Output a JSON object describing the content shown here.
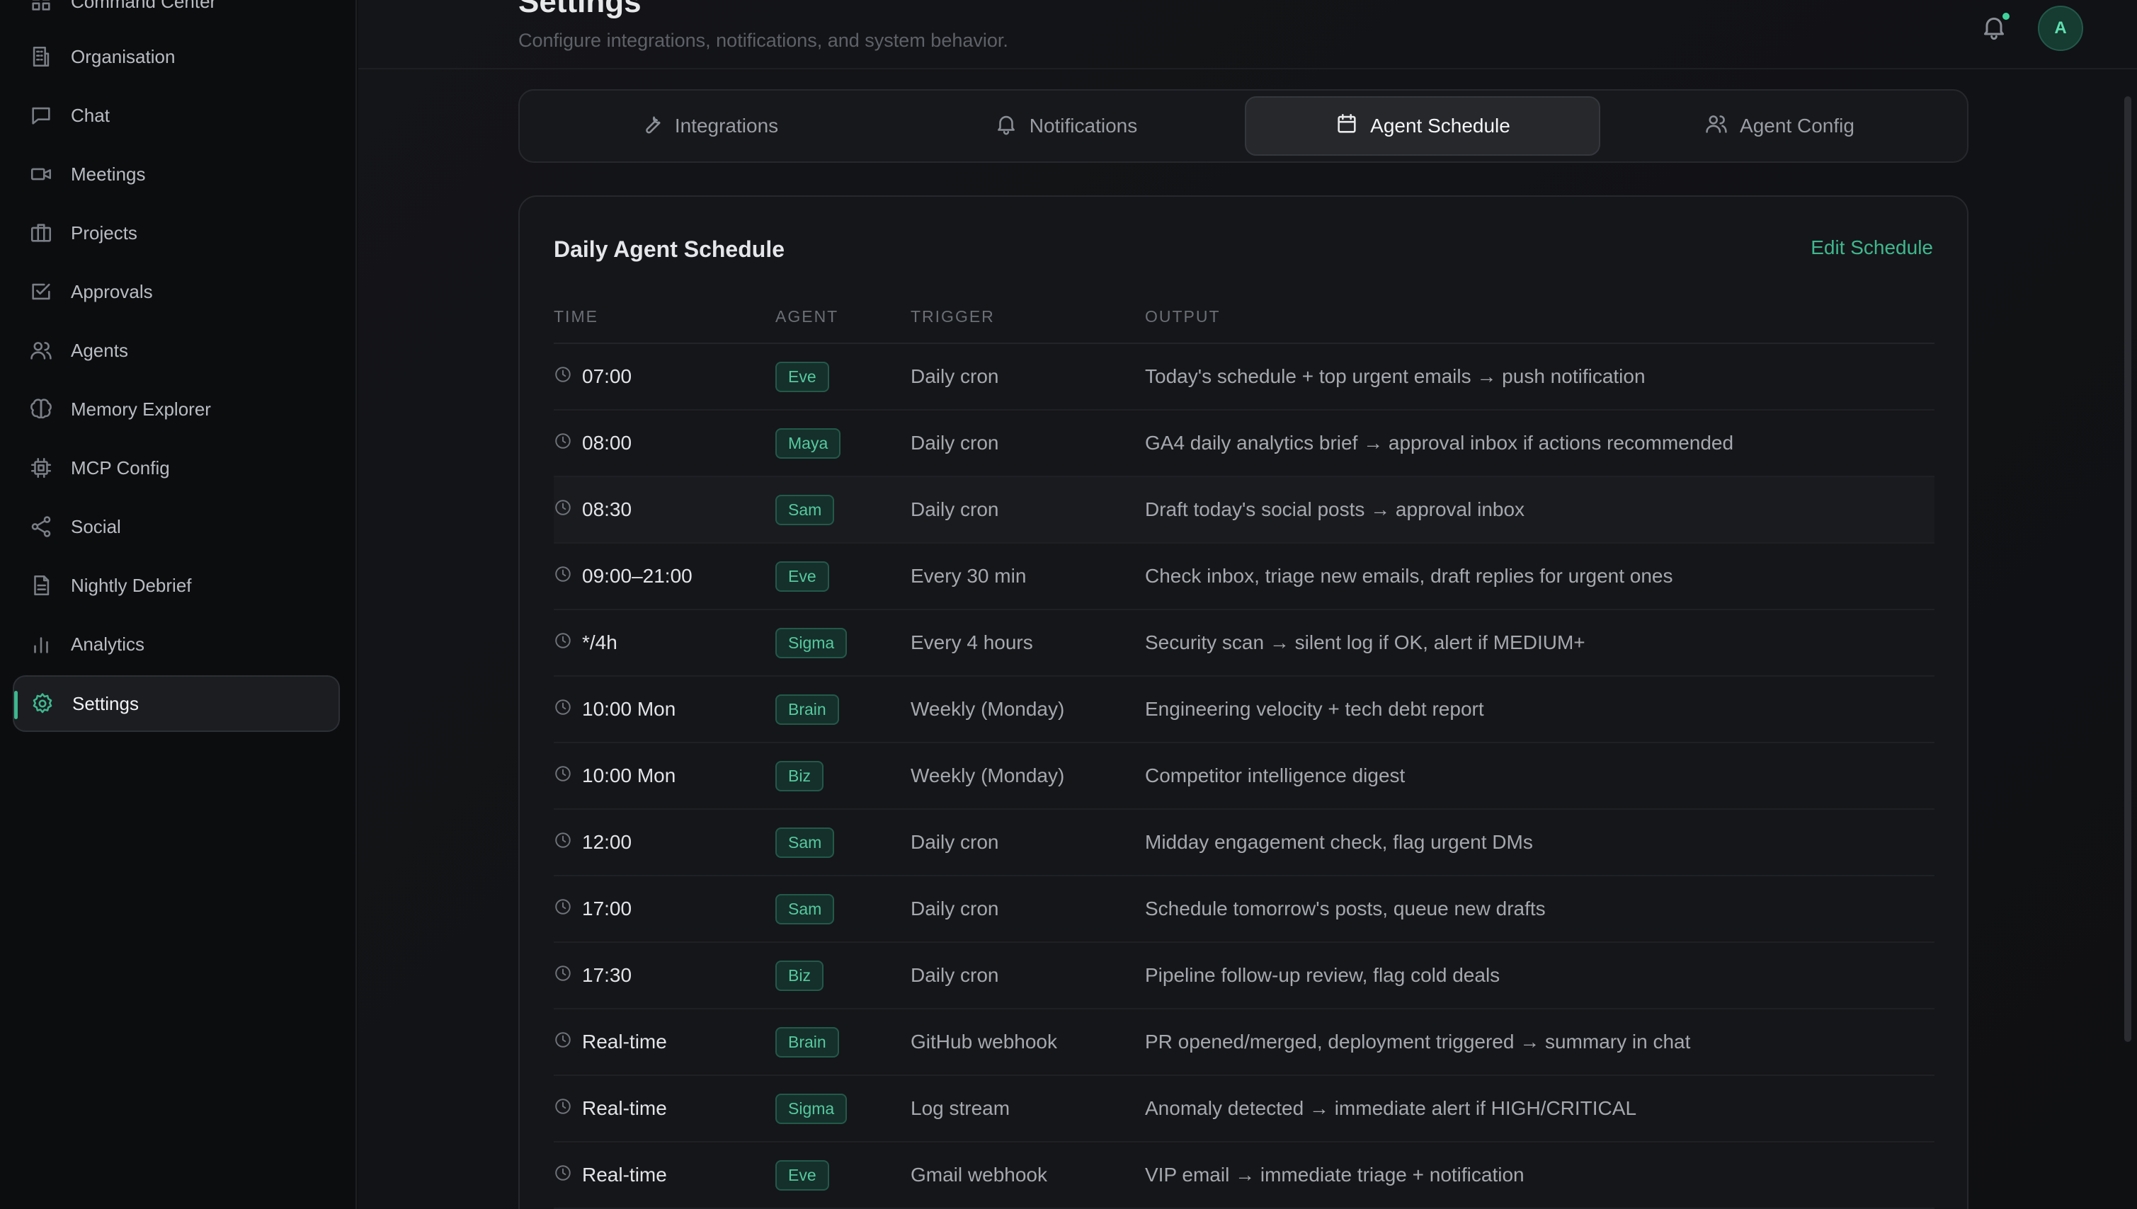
{
  "sidebar": {
    "items": [
      {
        "label": "Command Center",
        "icon": "grid-icon"
      },
      {
        "label": "Organisation",
        "icon": "building-icon"
      },
      {
        "label": "Chat",
        "icon": "chat-icon"
      },
      {
        "label": "Meetings",
        "icon": "video-icon"
      },
      {
        "label": "Projects",
        "icon": "briefcase-icon"
      },
      {
        "label": "Approvals",
        "icon": "check-square-icon"
      },
      {
        "label": "Agents",
        "icon": "users-icon"
      },
      {
        "label": "Memory Explorer",
        "icon": "brain-icon"
      },
      {
        "label": "MCP Config",
        "icon": "chip-icon"
      },
      {
        "label": "Social",
        "icon": "share-icon"
      },
      {
        "label": "Nightly Debrief",
        "icon": "document-icon"
      },
      {
        "label": "Analytics",
        "icon": "bar-chart-icon"
      },
      {
        "label": "Settings",
        "icon": "gear-icon",
        "active": true
      }
    ]
  },
  "header": {
    "title": "Settings",
    "subtitle": "Configure integrations, notifications, and system behavior.",
    "avatar_initial": "A"
  },
  "tabs": [
    {
      "label": "Integrations",
      "icon": "wrench-icon"
    },
    {
      "label": "Notifications",
      "icon": "bell-icon"
    },
    {
      "label": "Agent Schedule",
      "icon": "calendar-icon",
      "active": true
    },
    {
      "label": "Agent Config",
      "icon": "users-icon"
    }
  ],
  "schedule": {
    "title": "Daily Agent Schedule",
    "edit_label": "Edit Schedule",
    "columns": [
      "TIME",
      "AGENT",
      "TRIGGER",
      "OUTPUT"
    ],
    "rows": [
      {
        "time": "07:00",
        "agent": "Eve",
        "trigger": "Daily cron",
        "output": "Today's schedule + top urgent emails → push notification"
      },
      {
        "time": "08:00",
        "agent": "Maya",
        "trigger": "Daily cron",
        "output": "GA4 daily analytics brief → approval inbox if actions recommended"
      },
      {
        "time": "08:30",
        "agent": "Sam",
        "trigger": "Daily cron",
        "output": "Draft today's social posts → approval inbox"
      },
      {
        "time": "09:00–21:00",
        "agent": "Eve",
        "trigger": "Every 30 min",
        "output": "Check inbox, triage new emails, draft replies for urgent ones"
      },
      {
        "time": "*/4h",
        "agent": "Sigma",
        "trigger": "Every 4 hours",
        "output": "Security scan → silent log if OK, alert if MEDIUM+"
      },
      {
        "time": "10:00 Mon",
        "agent": "Brain",
        "trigger": "Weekly (Monday)",
        "output": "Engineering velocity + tech debt report"
      },
      {
        "time": "10:00 Mon",
        "agent": "Biz",
        "trigger": "Weekly (Monday)",
        "output": "Competitor intelligence digest"
      },
      {
        "time": "12:00",
        "agent": "Sam",
        "trigger": "Daily cron",
        "output": "Midday engagement check, flag urgent DMs"
      },
      {
        "time": "17:00",
        "agent": "Sam",
        "trigger": "Daily cron",
        "output": "Schedule tomorrow's posts, queue new drafts"
      },
      {
        "time": "17:30",
        "agent": "Biz",
        "trigger": "Daily cron",
        "output": "Pipeline follow-up review, flag cold deals"
      },
      {
        "time": "Real-time",
        "agent": "Brain",
        "trigger": "GitHub webhook",
        "output": "PR opened/merged, deployment triggered → summary in chat"
      },
      {
        "time": "Real-time",
        "agent": "Sigma",
        "trigger": "Log stream",
        "output": "Anomaly detected → immediate alert if HIGH/CRITICAL"
      },
      {
        "time": "Real-time",
        "agent": "Eve",
        "trigger": "Gmail webhook",
        "output": "VIP email → immediate triage + notification"
      }
    ]
  },
  "colors": {
    "accent": "#3fb78e",
    "background": "#0f1012",
    "card": "#151619"
  }
}
